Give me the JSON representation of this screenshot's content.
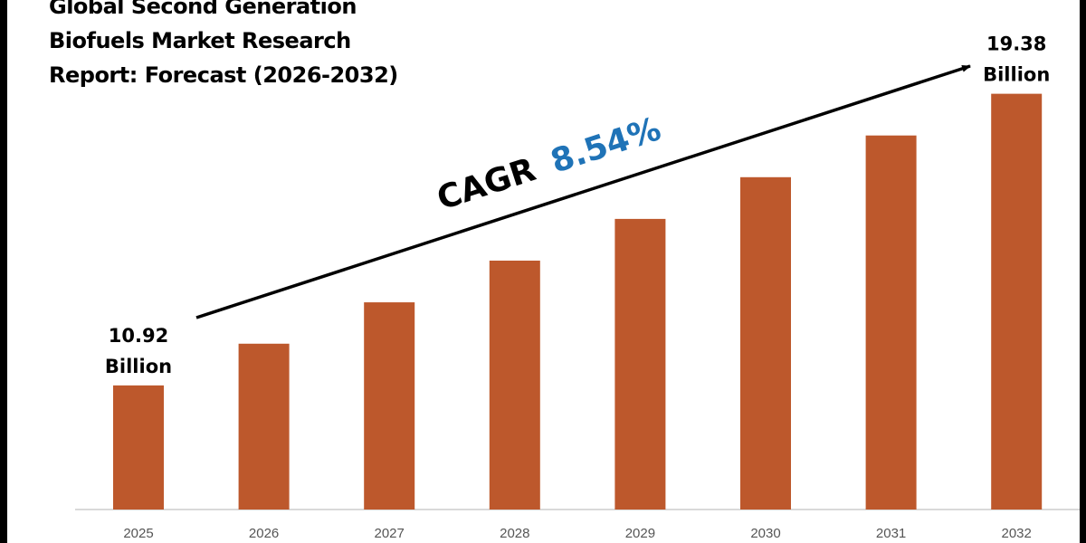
{
  "chart_data": {
    "type": "bar",
    "title": "Global Second Generation Biofuels Market Research Report: Forecast (2026-2032)",
    "categories": [
      "2025",
      "2026",
      "2027",
      "2028",
      "2029",
      "2030",
      "2031",
      "2032"
    ],
    "values": [
      10.92,
      12.13,
      13.33,
      14.54,
      15.75,
      16.96,
      18.17,
      19.38
    ],
    "unit": "Billion",
    "data_labels": [
      {
        "category": "2025",
        "value": "10.92",
        "unit": "Billion"
      },
      {
        "category": "2032",
        "value": "19.38",
        "unit": "Billion"
      }
    ],
    "annotation": {
      "prefix": "CAGR",
      "value": "8.54%"
    },
    "ylim": [
      7.32,
      22.1
    ],
    "grid": false,
    "colors": {
      "bar": "#BD582C",
      "cagr_value": "#1F73B7",
      "text": "#000000",
      "axis": "#D9D9D9"
    }
  }
}
